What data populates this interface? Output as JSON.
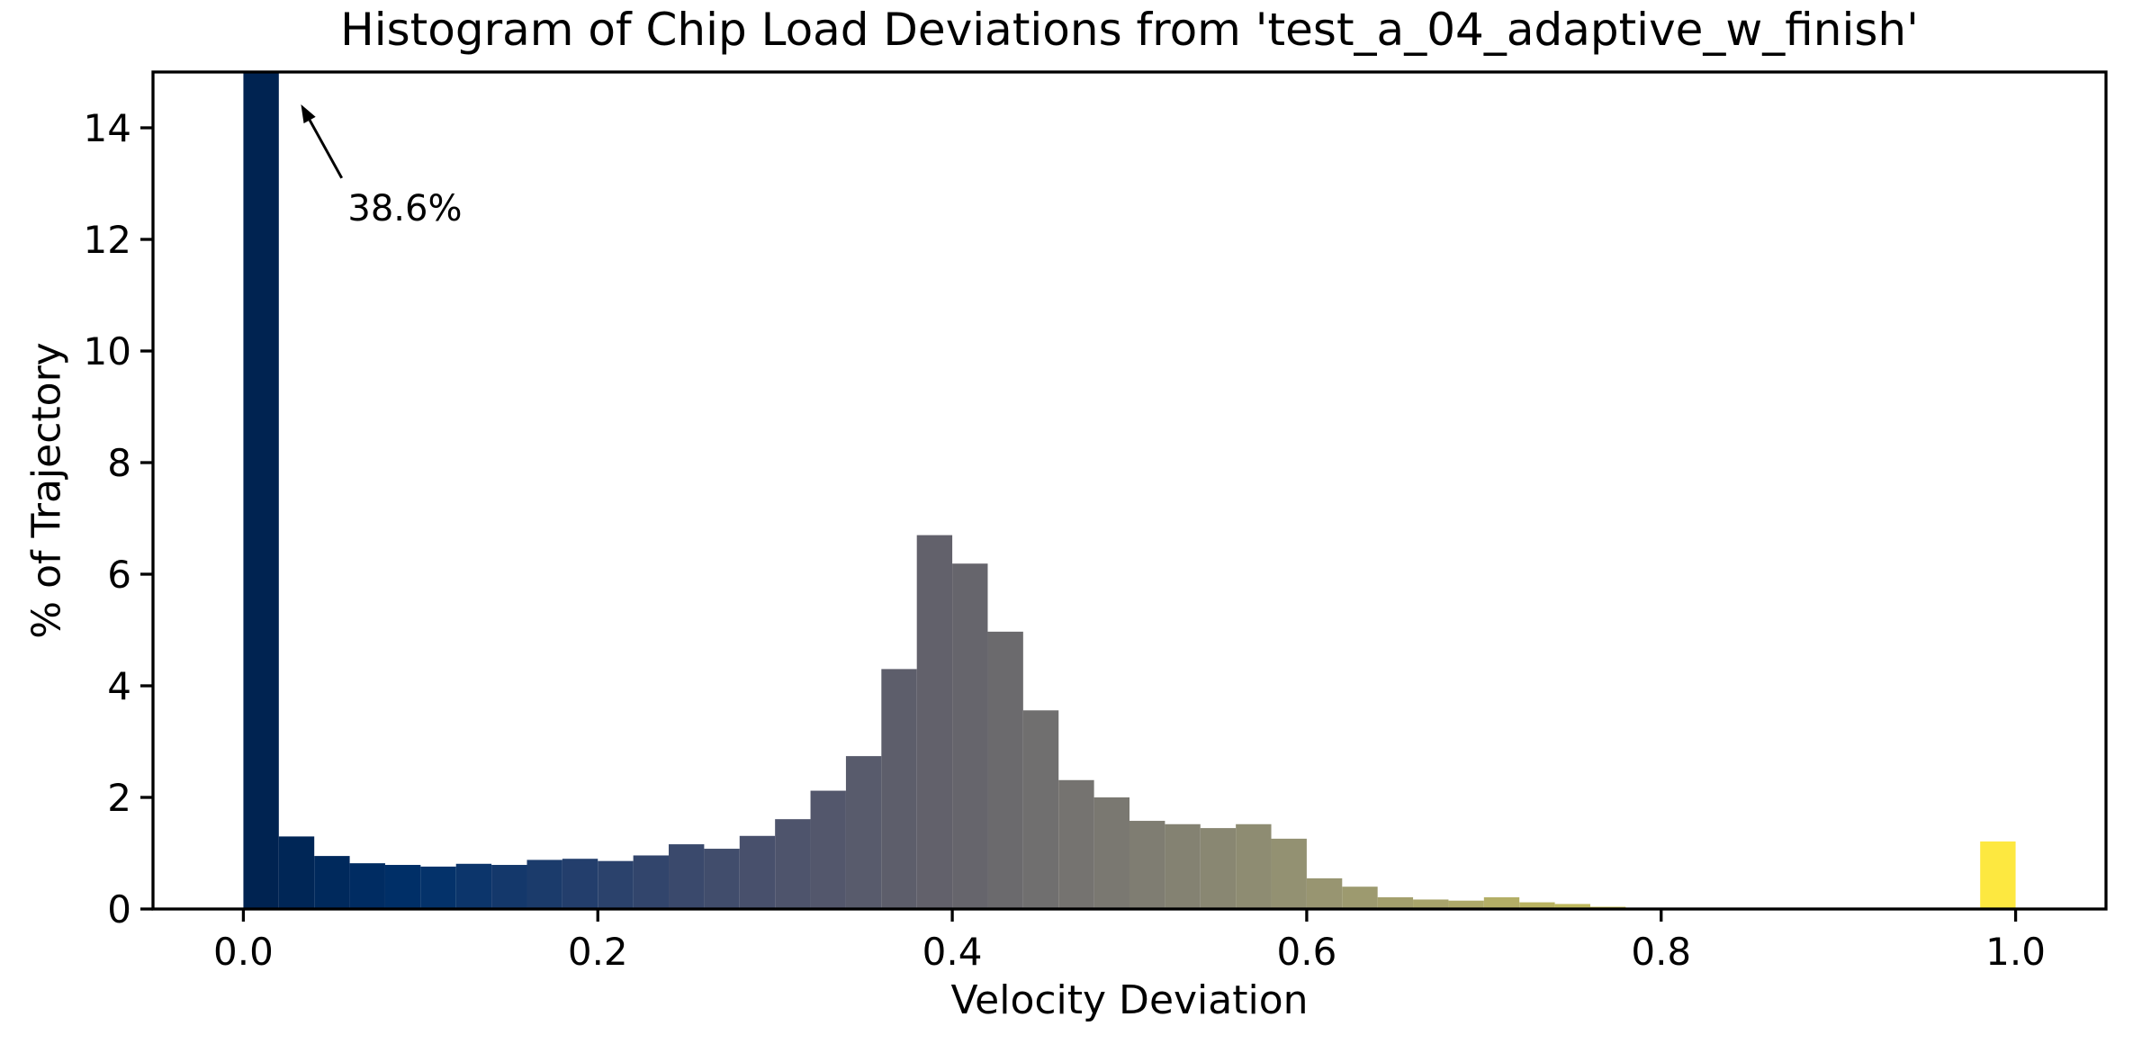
{
  "chart_data": {
    "type": "bar",
    "title": "Histogram of Chip Load Deviations from 'test_a_04_adaptive_w_finish'",
    "xlabel": "Velocity Deviation",
    "ylabel": "% of Trajectory",
    "xlim": [
      -0.051,
      1.051
    ],
    "ylim": [
      0,
      15
    ],
    "x_ticks": [
      {
        "value": 0.0,
        "label": "0.0"
      },
      {
        "value": 0.2,
        "label": "0.2"
      },
      {
        "value": 0.4,
        "label": "0.4"
      },
      {
        "value": 0.6,
        "label": "0.6"
      },
      {
        "value": 0.8,
        "label": "0.8"
      },
      {
        "value": 1.0,
        "label": "1.0"
      }
    ],
    "y_ticks": [
      {
        "value": 0,
        "label": "0"
      },
      {
        "value": 2,
        "label": "2"
      },
      {
        "value": 4,
        "label": "4"
      },
      {
        "value": 6,
        "label": "6"
      },
      {
        "value": 8,
        "label": "8"
      },
      {
        "value": 10,
        "label": "10"
      },
      {
        "value": 12,
        "label": "12"
      },
      {
        "value": 14,
        "label": "14"
      }
    ],
    "grid": false,
    "legend": null,
    "bin_start": 0.0,
    "bin_width": 0.02,
    "values": [
      38.6,
      1.3,
      0.95,
      0.82,
      0.79,
      0.76,
      0.81,
      0.79,
      0.88,
      0.9,
      0.86,
      0.96,
      1.16,
      1.08,
      1.31,
      1.61,
      2.12,
      2.74,
      4.3,
      6.7,
      6.19,
      4.97,
      3.56,
      2.31,
      2.0,
      1.58,
      1.52,
      1.45,
      1.52,
      1.26,
      0.55,
      0.4,
      0.21,
      0.17,
      0.15,
      0.21,
      0.12,
      0.09,
      0.04,
      0,
      0,
      0,
      0,
      0,
      0,
      0,
      0,
      0,
      0,
      1.21
    ],
    "first_bar_clipped": true,
    "annotation": {
      "text": "38.6%",
      "text_pos": [
        0.0589,
        12.87
      ],
      "arrow_start": [
        0.0555,
        13.1
      ],
      "arrow_tip": [
        0.0325,
        14.42
      ],
      "arrow_color": "#000000"
    },
    "colormap": {
      "name": "cividis",
      "stops": [
        {
          "t": 0.0,
          "c": "#00224E"
        },
        {
          "t": 0.1,
          "c": "#00306A"
        },
        {
          "t": 0.2,
          "c": "#27406C"
        },
        {
          "t": 0.3,
          "c": "#4C526C"
        },
        {
          "t": 0.4,
          "c": "#64636B"
        },
        {
          "t": 0.5,
          "c": "#7C7A72"
        },
        {
          "t": 0.6,
          "c": "#959372"
        },
        {
          "t": 0.7,
          "c": "#B0AB68"
        },
        {
          "t": 0.8,
          "c": "#CEC653"
        },
        {
          "t": 0.9,
          "c": "#E9E33B"
        },
        {
          "t": 1.0,
          "c": "#FFE841"
        }
      ]
    },
    "axis_color": "#000000",
    "background_color": "#FFFFFF"
  }
}
